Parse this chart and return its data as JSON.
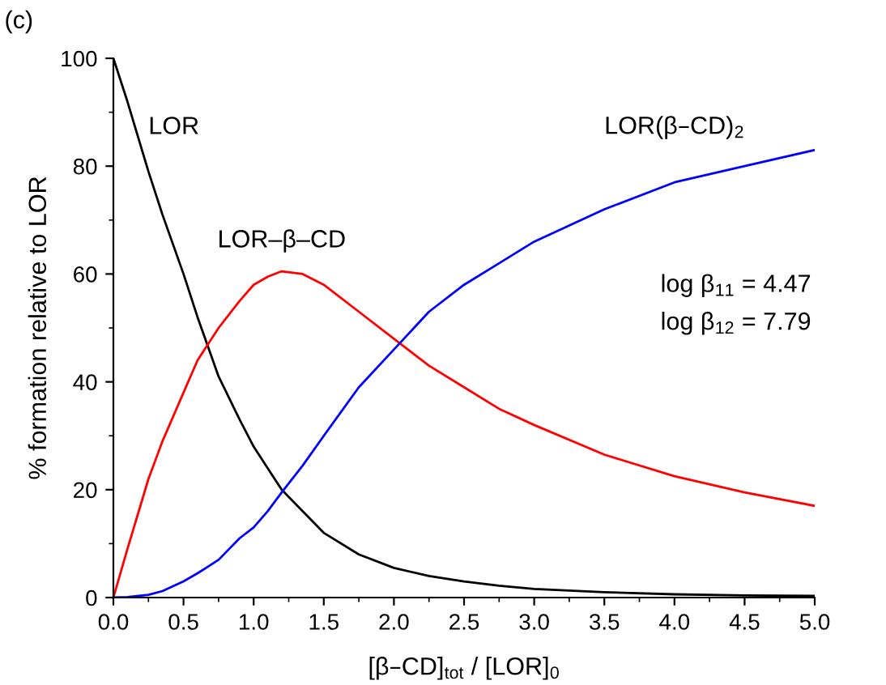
{
  "chart_data": {
    "type": "line",
    "xlabel": "[β–CD]$_{tot}$ / [LOR]$_{0}$",
    "ylabel": "% formation relative to LOR",
    "x": [
      0,
      0.1,
      0.25,
      0.35,
      0.5,
      0.6,
      0.75,
      0.9,
      1.0,
      1.1,
      1.2,
      1.35,
      1.5,
      1.75,
      2.0,
      2.25,
      2.5,
      2.75,
      3.0,
      3.5,
      4.0,
      4.5,
      5.0
    ],
    "series": [
      {
        "name": "LOR",
        "color": "#000000",
        "values": [
          100,
          92,
          79,
          71,
          60,
          52,
          41,
          33,
          28,
          24,
          20,
          16,
          12,
          8,
          5.5,
          4,
          3,
          2.2,
          1.6,
          1.0,
          0.6,
          0.4,
          0.3
        ]
      },
      {
        "name": "LOR–β–CD",
        "color": "#ff0000",
        "values": [
          0,
          9,
          22,
          29,
          38,
          44,
          50,
          55,
          58,
          59.5,
          60.5,
          60,
          58,
          53,
          48,
          43,
          39,
          35,
          32,
          26.5,
          22.5,
          19.5,
          17
        ]
      },
      {
        "name": "LOR(β–CD)$_{2}$",
        "color": "#0000ff",
        "values": [
          0,
          0.1,
          0.5,
          1.2,
          3,
          4.5,
          7,
          11,
          13,
          16,
          19.5,
          24.5,
          30,
          39,
          46,
          53,
          58,
          62,
          66,
          72,
          77,
          80,
          83
        ]
      }
    ],
    "annotations": [
      "(c)",
      "log β$_{11}$ = 4.47",
      "log β$_{12}$ = 7.79"
    ],
    "xlim": [
      0,
      5
    ],
    "ylim": [
      0,
      100
    ],
    "xticks": [
      {
        "value": 0,
        "label": "0.0"
      },
      0.5,
      {
        "value": 1,
        "label": "1.0"
      },
      1.5,
      {
        "value": 2,
        "label": "2.0"
      },
      2.5,
      {
        "value": 3,
        "label": "3.0"
      },
      3.5,
      {
        "value": 4,
        "label": "4.0"
      },
      4.5,
      {
        "value": 5,
        "label": "5.0"
      }
    ],
    "yticks": [
      0,
      20,
      40,
      60,
      80,
      100
    ],
    "grid": false,
    "legend": false,
    "marker": "none",
    "line_style": "solid"
  }
}
